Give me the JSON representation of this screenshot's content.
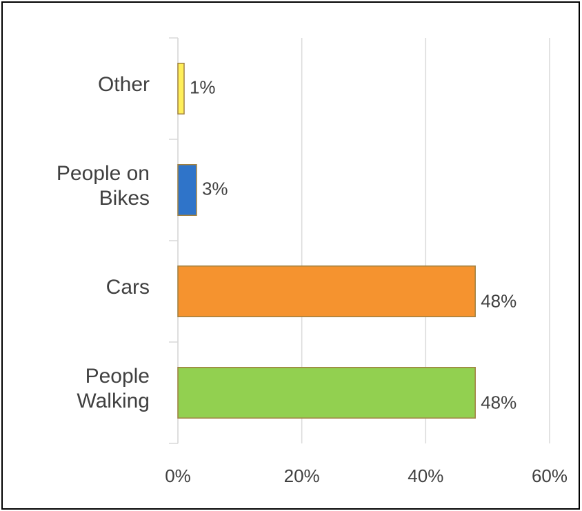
{
  "chart_data": {
    "type": "hbar",
    "categories": [
      "Other",
      "People on\nBikes",
      "Cars",
      "People\nWalking"
    ],
    "values": [
      1,
      3,
      48,
      48
    ],
    "value_labels": [
      "1%",
      "3%",
      "48%",
      "48%"
    ],
    "colors": [
      "#ffef5a",
      "#2f74c9",
      "#f5932f",
      "#92d050"
    ],
    "xlim": [
      0,
      60
    ],
    "xticks": [
      {
        "value": 0,
        "label": "0%"
      },
      {
        "value": 20,
        "label": "20%"
      },
      {
        "value": 40,
        "label": "40%"
      },
      {
        "value": 60,
        "label": "60%"
      }
    ],
    "grid": true
  }
}
